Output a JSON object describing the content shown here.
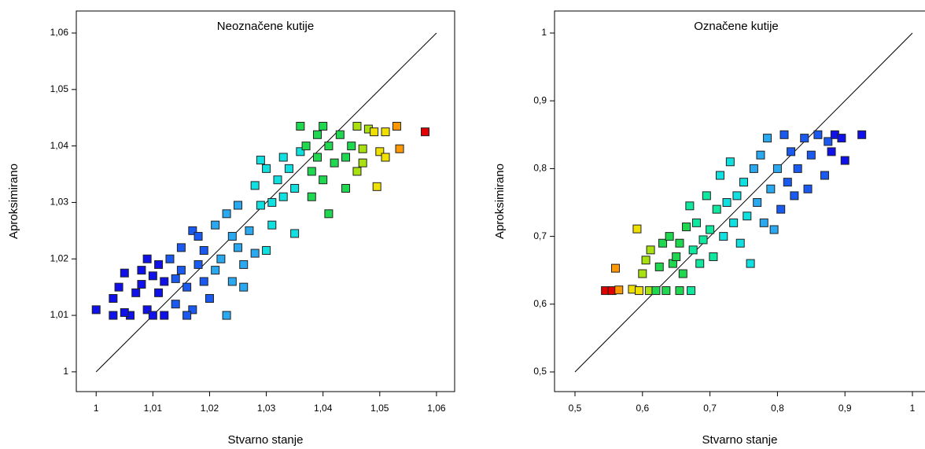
{
  "chart_data": [
    {
      "type": "scatter",
      "title": "Neoznačene kutije",
      "xlabel": "Stvarno stanje",
      "ylabel": "Aproksimirano",
      "xlim": [
        0.9965,
        1.0632
      ],
      "ylim": [
        0.9965,
        1.0639
      ],
      "xticks": [
        1,
        {
          "value": 1.01,
          "label": "1,01"
        },
        {
          "value": 1.02,
          "label": "1,02"
        },
        {
          "value": 1.03,
          "label": "1,03"
        },
        {
          "value": 1.04,
          "label": "1,04"
        },
        {
          "value": 1.05,
          "label": "1,05"
        },
        {
          "value": 1.06,
          "label": "1,06"
        }
      ],
      "yticks": [
        1,
        {
          "value": 1.01,
          "label": "1,01"
        },
        {
          "value": 1.02,
          "label": "1,02"
        },
        {
          "value": 1.03,
          "label": "1,03"
        },
        {
          "value": 1.04,
          "label": "1,04"
        },
        {
          "value": 1.05,
          "label": "1,05"
        },
        {
          "value": 1.06,
          "label": "1,06"
        }
      ],
      "identity_line": true,
      "series": [
        {
          "color": "#1010e8",
          "x": [
            1.0,
            1.003,
            1.003,
            1.004,
            1.005,
            1.006,
            1.007,
            1.008,
            1.009,
            1.009,
            1.01,
            1.01,
            1.011,
            1.011,
            1.012,
            1.012,
            1.008,
            1.005
          ],
          "y": [
            1.011,
            1.01,
            1.013,
            1.015,
            1.0175,
            1.01,
            1.014,
            1.0155,
            1.02,
            1.011,
            1.017,
            1.01,
            1.019,
            1.014,
            1.01,
            1.016,
            1.018,
            1.0105
          ]
        },
        {
          "color": "#1a5af0",
          "x": [
            1.013,
            1.014,
            1.015,
            1.015,
            1.016,
            1.017,
            1.017,
            1.018,
            1.019,
            1.019,
            1.02,
            1.014,
            1.016,
            1.018
          ],
          "y": [
            1.02,
            1.012,
            1.018,
            1.022,
            1.015,
            1.025,
            1.011,
            1.019,
            1.016,
            1.0215,
            1.013,
            1.0165,
            1.01,
            1.024
          ]
        },
        {
          "color": "#2aa8f0",
          "x": [
            1.021,
            1.021,
            1.022,
            1.023,
            1.023,
            1.024,
            1.025,
            1.025,
            1.026,
            1.027,
            1.028,
            1.026,
            1.024
          ],
          "y": [
            1.026,
            1.018,
            1.02,
            1.028,
            1.01,
            1.016,
            1.022,
            1.0295,
            1.019,
            1.025,
            1.021,
            1.015,
            1.024
          ]
        },
        {
          "color": "#10e0e0",
          "x": [
            1.028,
            1.029,
            1.03,
            1.031,
            1.031,
            1.032,
            1.033,
            1.033,
            1.034,
            1.035,
            1.03,
            1.029,
            1.035,
            1.036
          ],
          "y": [
            1.033,
            1.0295,
            1.036,
            1.03,
            1.026,
            1.034,
            1.038,
            1.031,
            1.036,
            1.0325,
            1.0215,
            1.0375,
            1.0245,
            1.039
          ]
        },
        {
          "color": "#20d850",
          "x": [
            1.036,
            1.037,
            1.038,
            1.039,
            1.039,
            1.04,
            1.04,
            1.041,
            1.041,
            1.042,
            1.043,
            1.044,
            1.044,
            1.045,
            1.038
          ],
          "y": [
            1.0435,
            1.04,
            1.0355,
            1.042,
            1.038,
            1.0435,
            1.034,
            1.028,
            1.04,
            1.037,
            1.042,
            1.0325,
            1.038,
            1.04,
            1.031
          ]
        },
        {
          "color": "#a8e010",
          "x": [
            1.046,
            1.047,
            1.048,
            1.046,
            1.047
          ],
          "y": [
            1.0435,
            1.0395,
            1.043,
            1.0355,
            1.037
          ]
        },
        {
          "color": "#f0e000",
          "x": [
            1.049,
            1.05,
            1.051,
            1.051,
            1.0495
          ],
          "y": [
            1.0425,
            1.039,
            1.0425,
            1.038,
            1.0328
          ]
        },
        {
          "color": "#ff9800",
          "x": [
            1.053,
            1.0535
          ],
          "y": [
            1.0435,
            1.0395
          ]
        },
        {
          "color": "#e00000",
          "x": [
            1.058
          ],
          "y": [
            1.0425
          ]
        }
      ]
    },
    {
      "type": "scatter",
      "title": "Označene kutije",
      "xlabel": "Stvarno stanje",
      "ylabel": "Aproksimirano",
      "xlim": [
        0.4697,
        1.0291
      ],
      "ylim": [
        0.471,
        1.0325
      ],
      "xticks": [
        {
          "value": 0.5,
          "label": "0,5"
        },
        {
          "value": 0.6,
          "label": "0,6"
        },
        {
          "value": 0.7,
          "label": "0,7"
        },
        {
          "value": 0.8,
          "label": "0,8"
        },
        {
          "value": 0.9,
          "label": "0,9"
        },
        1
      ],
      "yticks": [
        {
          "value": 0.5,
          "label": "0,5"
        },
        {
          "value": 0.6,
          "label": "0,6"
        },
        {
          "value": 0.7,
          "label": "0,7"
        },
        {
          "value": 0.8,
          "label": "0,8"
        },
        {
          "value": 0.9,
          "label": "0,9"
        },
        1
      ],
      "identity_line": true,
      "series": [
        {
          "color": "#e00000",
          "x": [
            0.545,
            0.555
          ],
          "y": [
            0.62,
            0.62
          ]
        },
        {
          "color": "#ff9800",
          "x": [
            0.56,
            0.565
          ],
          "y": [
            0.653,
            0.621
          ]
        },
        {
          "color": "#f0e000",
          "x": [
            0.585,
            0.592,
            0.595
          ],
          "y": [
            0.622,
            0.711,
            0.62
          ]
        },
        {
          "color": "#a8e010",
          "x": [
            0.6,
            0.605,
            0.61,
            0.612
          ],
          "y": [
            0.645,
            0.665,
            0.62,
            0.68
          ]
        },
        {
          "color": "#20d850",
          "x": [
            0.62,
            0.625,
            0.63,
            0.635,
            0.64,
            0.645,
            0.65,
            0.655,
            0.655,
            0.66,
            0.665
          ],
          "y": [
            0.62,
            0.655,
            0.69,
            0.62,
            0.7,
            0.66,
            0.67,
            0.62,
            0.69,
            0.645,
            0.714
          ]
        },
        {
          "color": "#10e8a0",
          "x": [
            0.67,
            0.672,
            0.675,
            0.68,
            0.685,
            0.69,
            0.695,
            0.7,
            0.705,
            0.71
          ],
          "y": [
            0.745,
            0.62,
            0.68,
            0.72,
            0.66,
            0.695,
            0.76,
            0.71,
            0.67,
            0.74
          ]
        },
        {
          "color": "#10e0e0",
          "x": [
            0.715,
            0.72,
            0.725,
            0.73,
            0.735,
            0.74,
            0.745,
            0.75,
            0.755,
            0.76
          ],
          "y": [
            0.79,
            0.7,
            0.75,
            0.81,
            0.72,
            0.76,
            0.69,
            0.78,
            0.73,
            0.66
          ]
        },
        {
          "color": "#2aa8f0",
          "x": [
            0.765,
            0.77,
            0.775,
            0.78,
            0.785,
            0.79,
            0.795,
            0.8
          ],
          "y": [
            0.8,
            0.75,
            0.82,
            0.72,
            0.845,
            0.77,
            0.71,
            0.8
          ]
        },
        {
          "color": "#1a5af0",
          "x": [
            0.805,
            0.81,
            0.815,
            0.82,
            0.825,
            0.83,
            0.84,
            0.845,
            0.85,
            0.86,
            0.87,
            0.875
          ],
          "y": [
            0.74,
            0.85,
            0.78,
            0.825,
            0.76,
            0.8,
            0.845,
            0.77,
            0.82,
            0.85,
            0.79,
            0.84
          ]
        },
        {
          "color": "#1010e8",
          "x": [
            0.885,
            0.895,
            0.9,
            0.925,
            0.88
          ],
          "y": [
            0.85,
            0.845,
            0.812,
            0.85,
            0.825
          ]
        }
      ]
    }
  ]
}
